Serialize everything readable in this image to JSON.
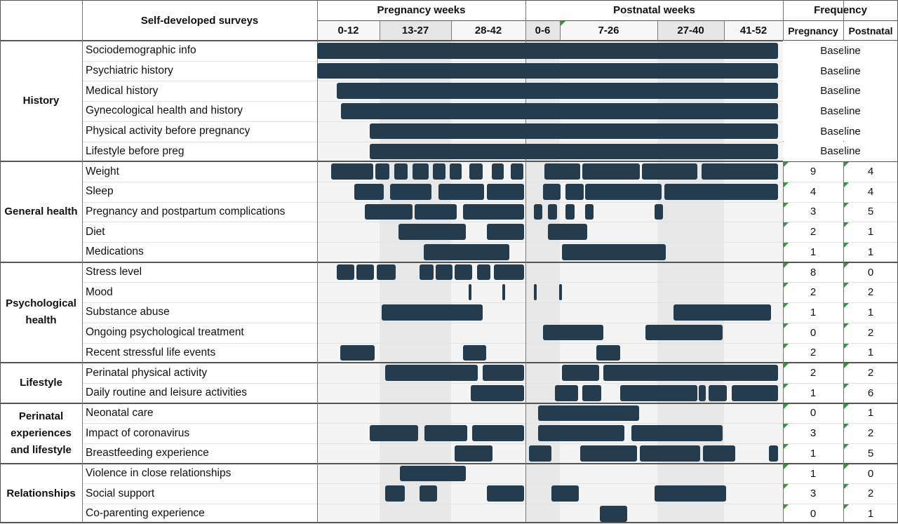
{
  "header": {
    "surveys_title": "Self-developed surveys",
    "pregnancy_title": "Pregnancy weeks",
    "postnatal_title": "Postnatal weeks",
    "frequency_title": "Frequency",
    "columns": [
      "0-12",
      "13-27",
      "28-42",
      "0-6",
      "7-26",
      "27-40",
      "41-52"
    ],
    "freq_columns": [
      "Pregnancy",
      "Postnatal"
    ]
  },
  "groups": [
    {
      "label": "History",
      "rows": [
        0,
        5
      ]
    },
    {
      "label": "General health",
      "rows": [
        6,
        10
      ]
    },
    {
      "label": "Psychological health",
      "rows": [
        11,
        15
      ]
    },
    {
      "label": "Lifestyle",
      "rows": [
        16,
        17
      ]
    },
    {
      "label": "Perinatal experiences and lifestyle",
      "rows": [
        18,
        20
      ]
    },
    {
      "label": "Relationships",
      "rows": [
        21,
        23
      ]
    }
  ],
  "rows": [
    {
      "label": "Sociodemographic info",
      "baseline": "Baseline"
    },
    {
      "label": "Psychiatric history",
      "baseline": "Baseline"
    },
    {
      "label": "Medical history",
      "baseline": "Baseline"
    },
    {
      "label": "Gynecological health and history",
      "baseline": "Baseline"
    },
    {
      "label": "Physical activity before pregnancy",
      "baseline": "Baseline"
    },
    {
      "label": "Lifestyle before preg",
      "baseline": "Baseline"
    },
    {
      "label": "Weight",
      "pregnancy": "9",
      "postnatal": "4"
    },
    {
      "label": "Sleep",
      "pregnancy": "4",
      "postnatal": "4"
    },
    {
      "label": "Pregnancy and postpartum complications",
      "pregnancy": "3",
      "postnatal": "5"
    },
    {
      "label": "Diet",
      "pregnancy": "2",
      "postnatal": "1"
    },
    {
      "label": "Medications",
      "pregnancy": "1",
      "postnatal": "1"
    },
    {
      "label": "Stress level",
      "pregnancy": "8",
      "postnatal": "0"
    },
    {
      "label": "Mood",
      "pregnancy": "2",
      "postnatal": "2"
    },
    {
      "label": "Substance abuse",
      "pregnancy": "1",
      "postnatal": "1"
    },
    {
      "label": "Ongoing psychological treatment",
      "pregnancy": "0",
      "postnatal": "2"
    },
    {
      "label": "Recent stressful life events",
      "pregnancy": "2",
      "postnatal": "1"
    },
    {
      "label": "Perinatal physical activity",
      "pregnancy": "2",
      "postnatal": "2"
    },
    {
      "label": "Daily routine and leisure activities",
      "pregnancy": "1",
      "postnatal": "6"
    },
    {
      "label": "Neonatal care",
      "pregnancy": "0",
      "postnatal": "1"
    },
    {
      "label": "Impact of coronavirus",
      "pregnancy": "3",
      "postnatal": "2"
    },
    {
      "label": "Breastfeeding experience",
      "pregnancy": "1",
      "postnatal": "5"
    },
    {
      "label": "Violence in close relationships",
      "pregnancy": "1",
      "postnatal": "0"
    },
    {
      "label": "Social support",
      "pregnancy": "3",
      "postnatal": "2"
    },
    {
      "label": "Co-parenting experience",
      "pregnancy": "0",
      "postnatal": "1"
    }
  ],
  "bars": [
    [
      [
        0,
        99
      ]
    ],
    [
      [
        0,
        99
      ]
    ],
    [
      [
        4.2,
        99
      ]
    ],
    [
      [
        5.1,
        99
      ]
    ],
    [
      [
        11.3,
        99
      ]
    ],
    [
      [
        11.3,
        99
      ]
    ],
    [
      [
        3,
        12
      ],
      [
        12.5,
        15.5
      ],
      [
        16.5,
        19.5
      ],
      [
        20.5,
        24
      ],
      [
        24.8,
        27.5
      ],
      [
        28.5,
        31
      ],
      [
        32.7,
        35.5
      ],
      [
        37.5,
        40
      ],
      [
        41.5,
        44.3
      ],
      [
        48.8,
        56.5
      ],
      [
        57,
        69.3
      ],
      [
        69.8,
        81.7
      ],
      [
        82.5,
        99
      ]
    ],
    [
      [
        8,
        14.3
      ],
      [
        15.7,
        24.5
      ],
      [
        26.1,
        35.8
      ],
      [
        36.5,
        44.4
      ],
      [
        48.5,
        52.3
      ],
      [
        53.3,
        57.2
      ],
      [
        57.5,
        74
      ],
      [
        74.5,
        99
      ]
    ],
    [
      [
        10.2,
        20.5
      ],
      [
        21,
        30
      ],
      [
        31.3,
        44.4
      ],
      [
        46.5,
        48.3
      ],
      [
        49.5,
        51.5
      ],
      [
        53.3,
        55.2
      ],
      [
        57.5,
        59.3
      ],
      [
        72.5,
        74.2
      ]
    ],
    [
      [
        17.5,
        32
      ],
      [
        36.5,
        44.4
      ],
      [
        49.5,
        58
      ]
    ],
    [
      [
        22.9,
        41.3
      ],
      [
        52.5,
        74.8
      ]
    ],
    [
      [
        4.2,
        8
      ],
      [
        8.5,
        12.2
      ],
      [
        12.8,
        16.8
      ],
      [
        22,
        25
      ],
      [
        25.5,
        29
      ],
      [
        29.5,
        33.3
      ],
      [
        34.3,
        37.2
      ],
      [
        38,
        44.4
      ]
    ],
    [
      [
        32.5,
        33.1
      ],
      [
        39.8,
        40.4
      ],
      [
        46.5,
        47.1
      ],
      [
        52,
        52.6
      ]
    ],
    [
      [
        13.8,
        35.5
      ],
      [
        76.5,
        97.5
      ]
    ],
    [
      [
        48.5,
        61.5
      ],
      [
        70.5,
        87
      ]
    ],
    [
      [
        5,
        12.3
      ],
      [
        31.3,
        36.3
      ],
      [
        60,
        65
      ]
    ],
    [
      [
        14.6,
        34.5
      ],
      [
        35.5,
        44.4
      ],
      [
        52.5,
        60.5
      ],
      [
        61.5,
        99
      ]
    ],
    [
      [
        33,
        44.4
      ],
      [
        51,
        56
      ],
      [
        57,
        61
      ],
      [
        65,
        81.6
      ],
      [
        82,
        83.5
      ],
      [
        84,
        88
      ],
      [
        89,
        99
      ]
    ],
    [
      [
        47.5,
        69.2
      ]
    ],
    [
      [
        11.3,
        21.7
      ],
      [
        23,
        32.2
      ],
      [
        33.3,
        44.4
      ],
      [
        47.5,
        66
      ],
      [
        67.5,
        87
      ]
    ],
    [
      [
        29.5,
        37.7
      ],
      [
        45.5,
        50.3
      ],
      [
        56.5,
        68.7
      ],
      [
        69.3,
        82.3
      ],
      [
        82.8,
        89.8
      ],
      [
        97,
        99
      ]
    ],
    [
      [
        17.7,
        32
      ]
    ],
    [
      [
        14.6,
        18.8
      ],
      [
        22,
        25.7
      ],
      [
        36.5,
        44.4
      ],
      [
        50.3,
        56.2
      ],
      [
        72.5,
        87.8
      ]
    ],
    [
      [
        60.7,
        66.6
      ]
    ]
  ],
  "flagged_cells": {
    "header_postnatal_col": 0,
    "freq_rows_from": 6
  }
}
